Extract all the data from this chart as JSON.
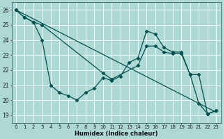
{
  "xlabel": "Humidex (Indice chaleur)",
  "bg_color": "#aed8d4",
  "grid_color": "#ffffff",
  "line_color": "#005050",
  "xlim": [
    -0.5,
    23.5
  ],
  "ylim": [
    18.5,
    26.5
  ],
  "xticks": [
    0,
    1,
    2,
    3,
    4,
    5,
    6,
    7,
    8,
    9,
    10,
    11,
    12,
    13,
    14,
    15,
    16,
    17,
    18,
    19,
    20,
    21,
    22,
    23
  ],
  "yticks": [
    19,
    20,
    21,
    22,
    23,
    24,
    25,
    26
  ],
  "line1_x": [
    0,
    1,
    2,
    3,
    4,
    5,
    6,
    7,
    8,
    9,
    10,
    11,
    12,
    13,
    14,
    15,
    16,
    17,
    18,
    19,
    20,
    21,
    22,
    23
  ],
  "line1_y": [
    26,
    25.5,
    25.2,
    24.0,
    21.0,
    20.5,
    20.3,
    20.0,
    20.5,
    20.8,
    21.5,
    21.3,
    21.6,
    22.5,
    22.8,
    24.6,
    24.4,
    23.5,
    23.2,
    23.2,
    21.7,
    19.8,
    19.1,
    19.3
  ],
  "line2_x": [
    0,
    23
  ],
  "line2_y": [
    26,
    19.2
  ],
  "line3_x": [
    0,
    1,
    2,
    3,
    10,
    11,
    14,
    15,
    16,
    17,
    18,
    19,
    20,
    21,
    22,
    23
  ],
  "line3_y": [
    26,
    25.5,
    25.2,
    25.0,
    21.8,
    21.4,
    22.3,
    23.6,
    23.6,
    23.2,
    23.1,
    23.1,
    21.7,
    21.7,
    19.1,
    19.3
  ]
}
